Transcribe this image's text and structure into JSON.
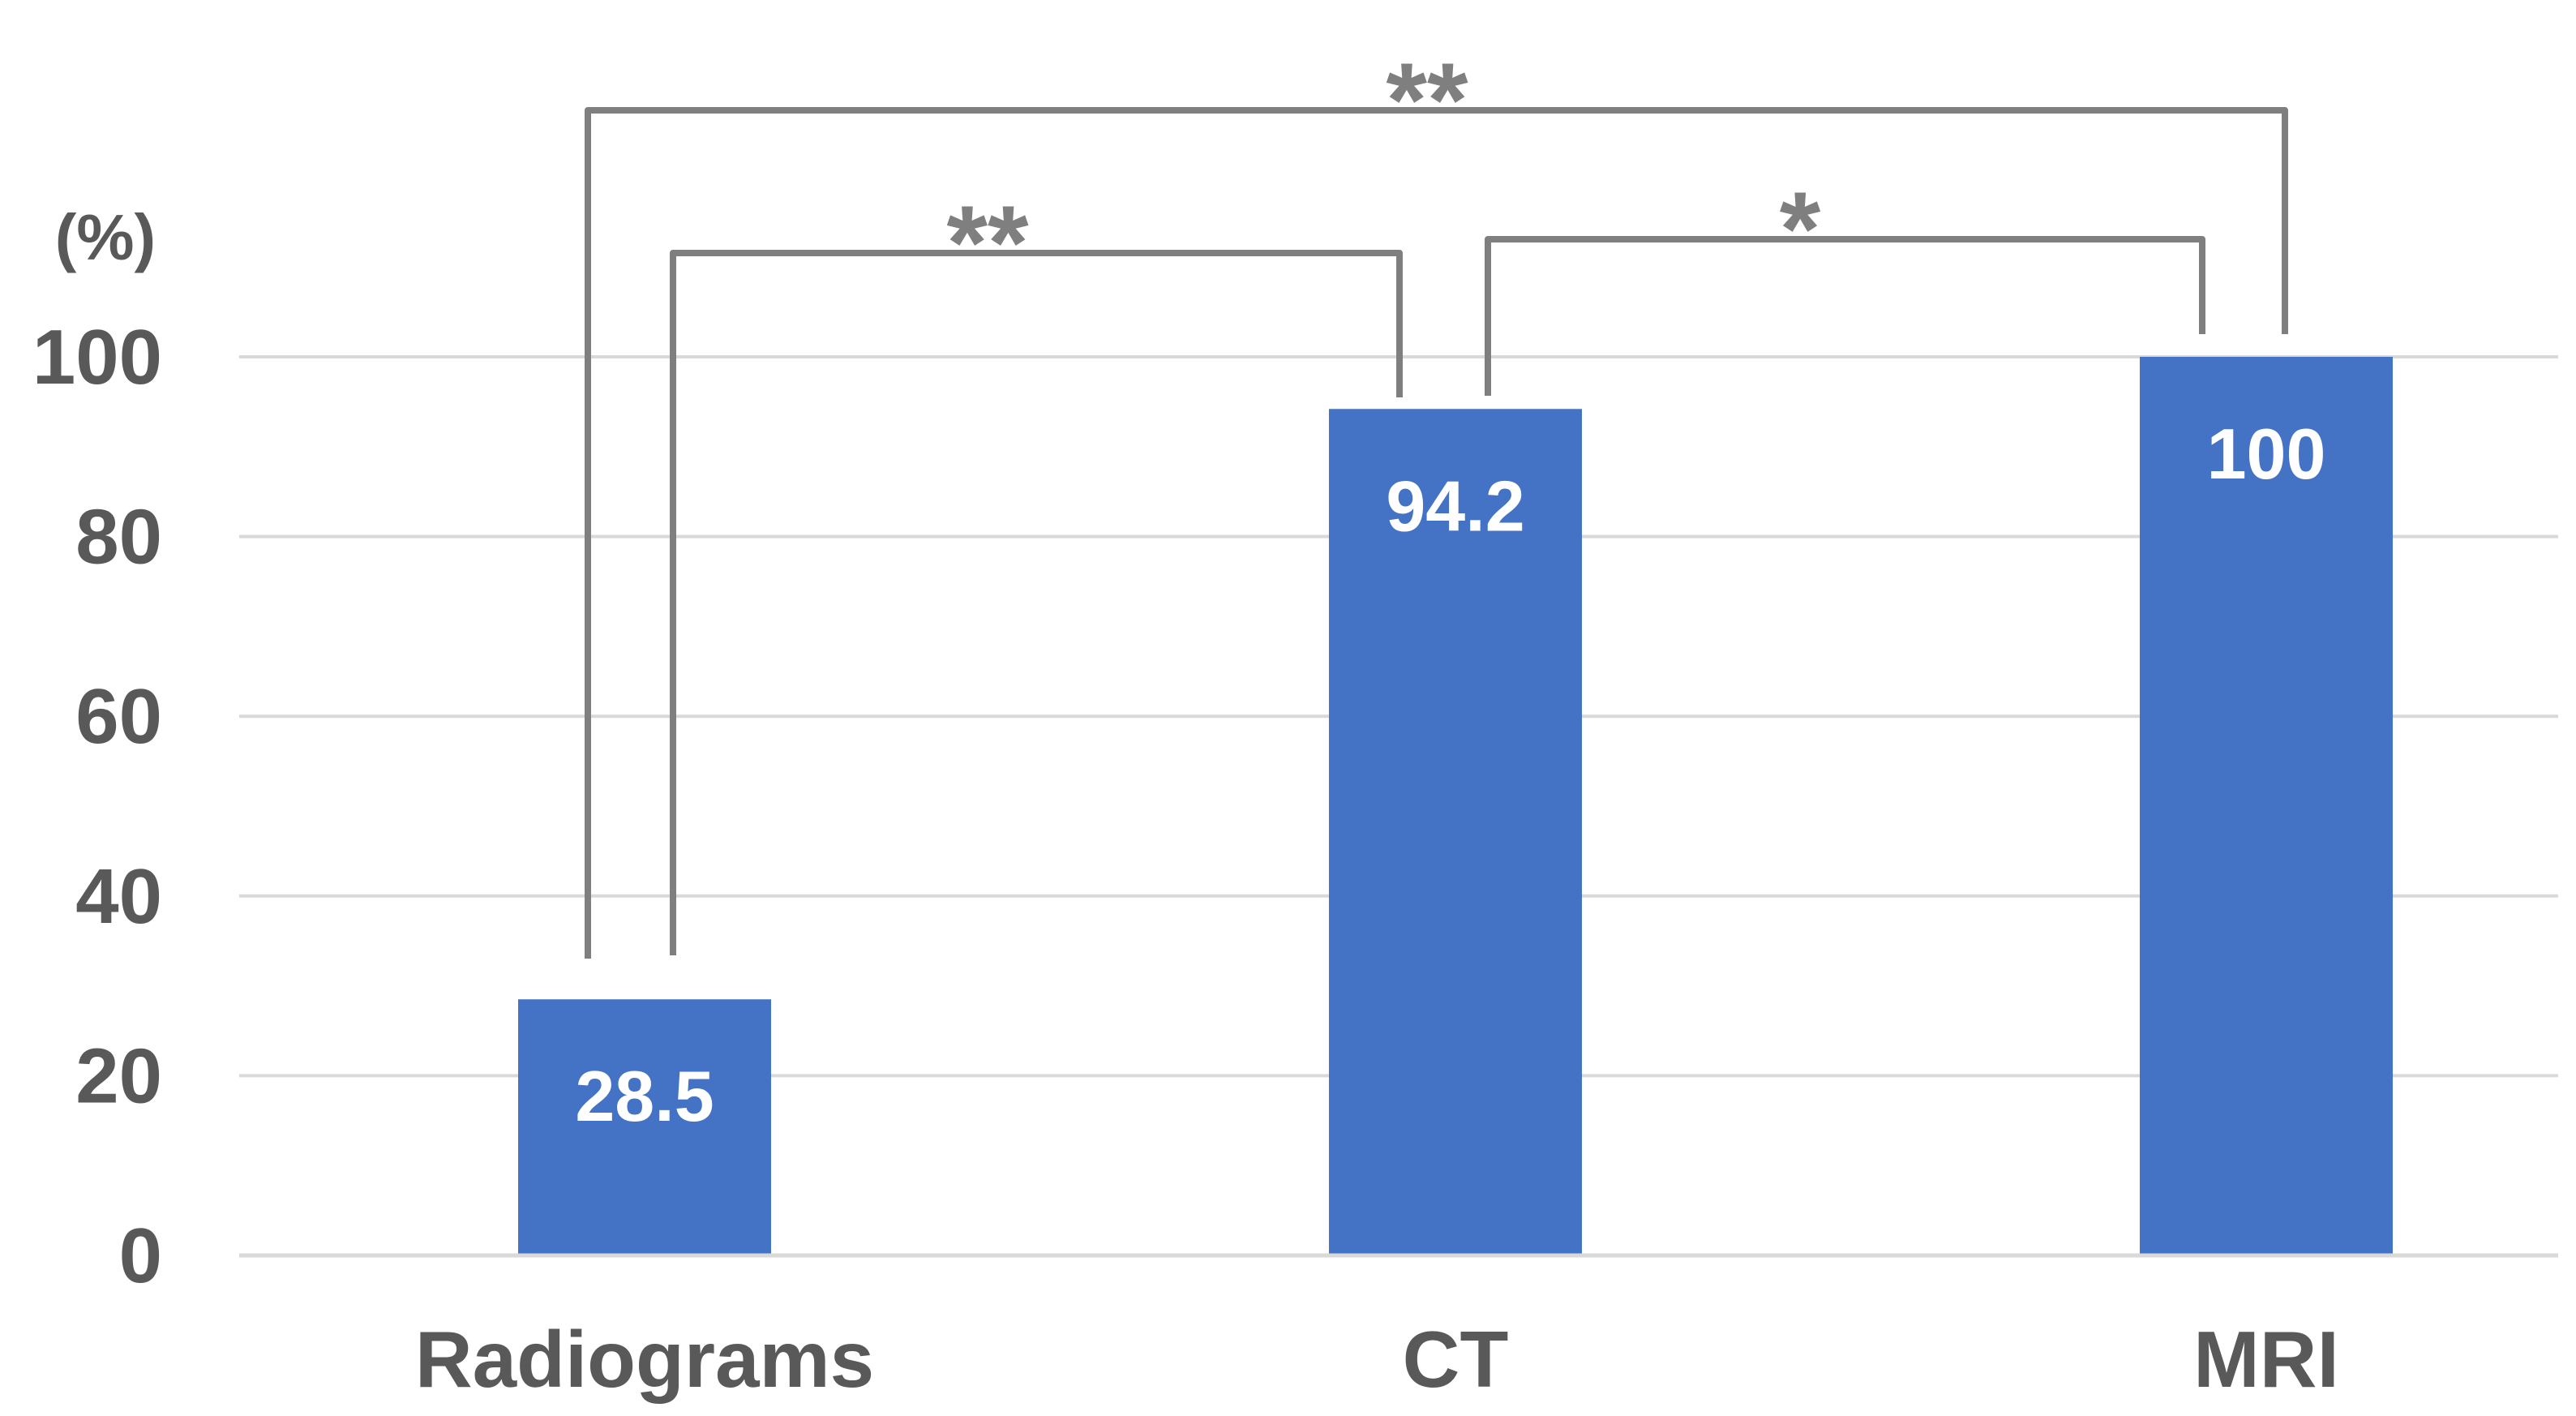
{
  "chart_data": {
    "type": "bar",
    "categories": [
      "Radiograms",
      "CT",
      "MRI"
    ],
    "values": [
      28.5,
      94.2,
      100
    ],
    "data_labels": [
      "28.5",
      "94.2",
      "100"
    ],
    "ylabel": "(%)",
    "ylim": [
      0,
      100
    ],
    "yticks": [
      "0",
      "20",
      "40",
      "60",
      "80",
      "100"
    ],
    "grid": true,
    "bar_color": "#4472C4",
    "grid_color": "#D9D9D9",
    "bracket_color": "#7F7F7F",
    "significance": [
      {
        "from": 0,
        "to": 1,
        "label": "**"
      },
      {
        "from": 1,
        "to": 2,
        "label": "*"
      },
      {
        "from": 0,
        "to": 2,
        "label": "**"
      }
    ]
  }
}
